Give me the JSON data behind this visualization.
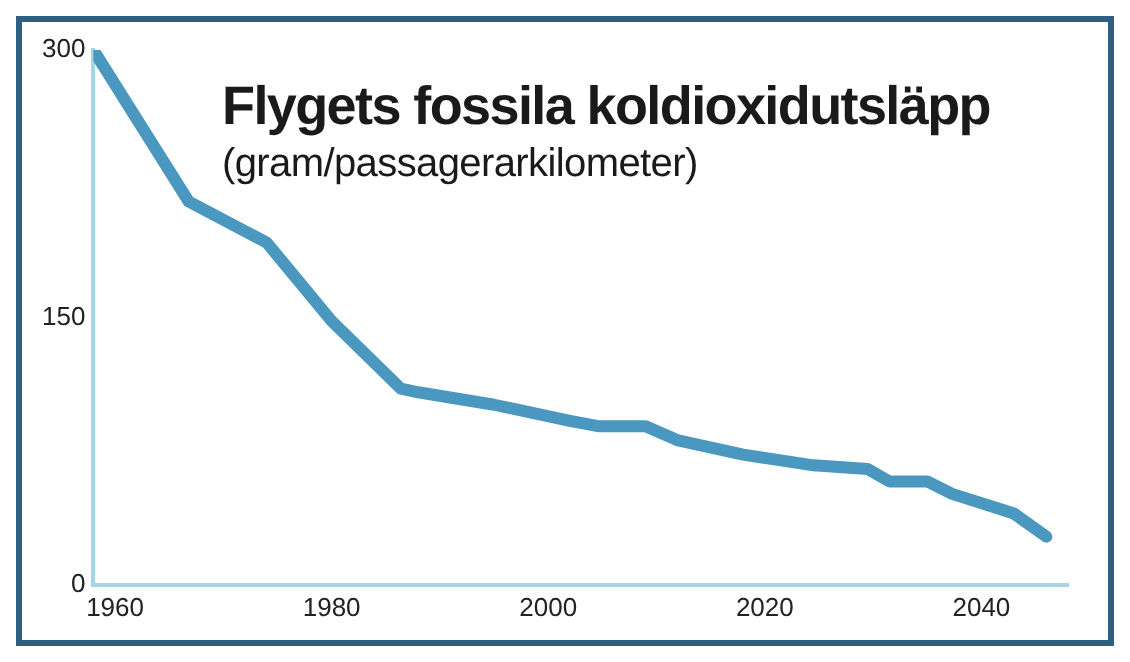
{
  "chart_data": {
    "type": "line",
    "title": "Flygets fossila koldioxidutsläpp",
    "subtitle": "(gram/passagerarkilometer)",
    "x": [
      1958,
      1966.8,
      1974,
      1980,
      1986.4,
      1988,
      1995,
      2002,
      2004.6,
      2009,
      2012,
      2018,
      2024.5,
      2029.5,
      2031.5,
      2035,
      2037.3,
      2042,
      2043,
      2046
    ],
    "series": [
      {
        "color": "#4a98c0",
        "values": [
          300,
          215,
          192,
          148,
          110,
          108,
          101,
          92,
          89,
          89,
          81,
          73,
          67,
          65,
          58,
          58,
          51,
          42,
          40,
          27
        ]
      }
    ],
    "xlim": [
      1958,
      2048
    ],
    "ylim": [
      0,
      300
    ],
    "xticks": [
      1960,
      1980,
      2000,
      2020,
      2040
    ],
    "yticks": [
      0,
      150,
      300
    ],
    "grid": false,
    "legend": false,
    "marker": "none",
    "line_style": "solid"
  }
}
